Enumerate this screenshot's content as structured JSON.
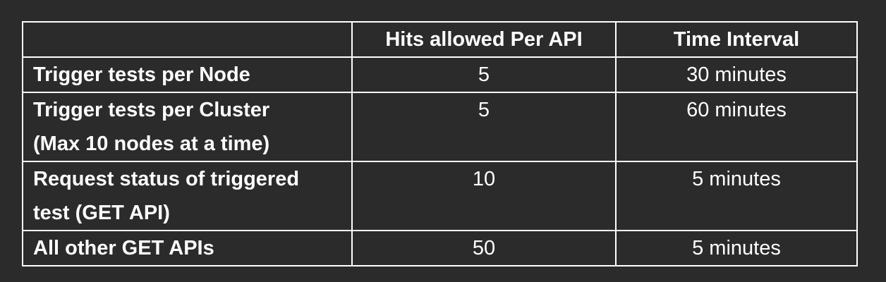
{
  "table": {
    "headers": [
      "",
      "Hits allowed Per API",
      "Time Interval"
    ],
    "rows": [
      {
        "label_lines": [
          "Trigger tests per Node"
        ],
        "hits": "5",
        "interval": "30 minutes"
      },
      {
        "label_lines": [
          "Trigger tests per Cluster",
          "(Max 10 nodes at a time)"
        ],
        "hits": "5",
        "interval": "60 minutes"
      },
      {
        "label_lines": [
          "Request status of triggered",
          "test (GET API)"
        ],
        "hits": "10",
        "interval": "5 minutes"
      },
      {
        "label_lines": [
          "All other GET APIs"
        ],
        "hits": "50",
        "interval": "5 minutes"
      }
    ]
  },
  "colors": {
    "background": "#2b2b2b",
    "text": "#ffffff",
    "border": "#ffffff"
  }
}
